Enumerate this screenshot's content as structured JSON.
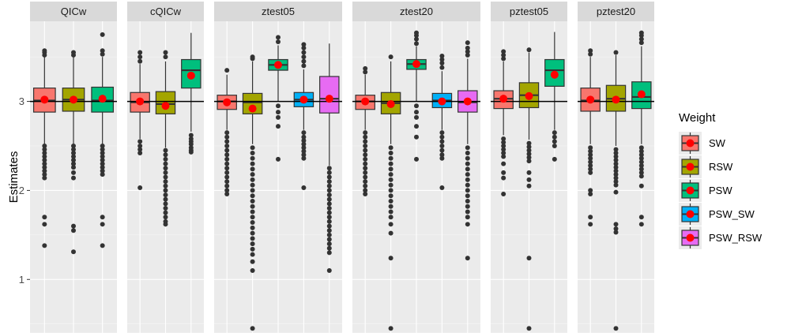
{
  "chart_data": {
    "type": "boxplot",
    "ylabel": "Estimates",
    "xlabel": "",
    "ylim": [
      0.4,
      3.9
    ],
    "yticks": [
      1,
      2,
      3
    ],
    "reference_line": 3,
    "legend": {
      "title": "Weight",
      "position": "right",
      "entries": [
        {
          "name": "SW",
          "color": "#F8766D"
        },
        {
          "name": "RSW",
          "color": "#A3A500"
        },
        {
          "name": "PSW",
          "color": "#00BF7D"
        },
        {
          "name": "PSW_SW",
          "color": "#00B0F6"
        },
        {
          "name": "PSW_RSW",
          "color": "#E76BF3"
        }
      ]
    },
    "panels": [
      {
        "name": "QICw",
        "boxes": [
          {
            "weight": "SW",
            "q1": 2.88,
            "median": 3.01,
            "q3": 3.15,
            "mean": 3.02,
            "whisker_low": 2.52,
            "whisker_high": 3.5,
            "outliers": [
              3.52,
              3.55,
              3.57,
              2.5,
              2.46,
              2.42,
              2.38,
              2.34,
              2.3,
              2.26,
              2.22,
              2.18,
              2.14,
              1.7,
              1.62,
              1.38
            ]
          },
          {
            "weight": "RSW",
            "q1": 2.89,
            "median": 3.02,
            "q3": 3.15,
            "mean": 3.02,
            "whisker_low": 2.52,
            "whisker_high": 3.5,
            "outliers": [
              3.52,
              3.55,
              2.5,
              2.46,
              2.42,
              2.38,
              2.34,
              2.3,
              2.26,
              2.2,
              2.14,
              1.6,
              1.55,
              1.31
            ]
          },
          {
            "weight": "PSW",
            "q1": 2.88,
            "median": 3.01,
            "q3": 3.16,
            "mean": 3.03,
            "whisker_low": 2.52,
            "whisker_high": 3.5,
            "outliers": [
              3.53,
              3.57,
              3.75,
              2.5,
              2.46,
              2.42,
              2.38,
              2.34,
              2.3,
              2.26,
              2.22,
              2.18,
              1.7,
              1.62,
              1.38
            ]
          }
        ]
      },
      {
        "name": "cQICw",
        "boxes": [
          {
            "weight": "SW",
            "q1": 2.88,
            "median": 2.99,
            "q3": 3.1,
            "mean": 3.0,
            "whisker_low": 2.58,
            "whisker_high": 3.42,
            "outliers": [
              3.45,
              3.5,
              3.55,
              2.55,
              2.5,
              2.46,
              2.42,
              2.03
            ]
          },
          {
            "weight": "RSW",
            "q1": 2.86,
            "median": 2.97,
            "q3": 3.11,
            "mean": 2.95,
            "whisker_low": 2.48,
            "whisker_high": 3.45,
            "outliers": [
              3.5,
              3.55,
              2.45,
              2.4,
              2.35,
              2.3,
              2.25,
              2.2,
              2.15,
              2.1,
              2.05,
              2.0,
              1.95,
              1.9,
              1.85,
              1.8,
              1.75,
              1.7,
              1.65,
              1.62
            ]
          },
          {
            "weight": "PSW",
            "q1": 3.15,
            "median": 3.35,
            "q3": 3.47,
            "mean": 3.29,
            "whisker_low": 2.66,
            "whisker_high": 3.77,
            "outliers": [
              2.62,
              2.58,
              2.55,
              2.52,
              2.48,
              2.45,
              2.43
            ]
          }
        ]
      },
      {
        "name": "ztest05",
        "boxes": [
          {
            "weight": "SW",
            "q1": 2.91,
            "median": 3.0,
            "q3": 3.07,
            "mean": 2.99,
            "whisker_low": 2.68,
            "whisker_high": 3.3,
            "outliers": [
              3.35,
              2.65,
              2.6,
              2.55,
              2.5,
              2.45,
              2.4,
              2.35,
              2.3,
              2.25,
              2.2,
              2.15,
              2.1,
              2.05,
              2.0,
              1.96
            ]
          },
          {
            "weight": "RSW",
            "q1": 2.86,
            "median": 2.99,
            "q3": 3.09,
            "mean": 2.92,
            "whisker_low": 2.52,
            "whisker_high": 3.45,
            "outliers": [
              3.48,
              3.5,
              2.48,
              2.42,
              2.36,
              2.3,
              2.24,
              2.18,
              2.12,
              2.06,
              2.0,
              1.94,
              1.88,
              1.82,
              1.76,
              1.7,
              1.64,
              1.58,
              1.52,
              1.46,
              1.4,
              1.34,
              1.28,
              1.2,
              1.1,
              0.45
            ]
          },
          {
            "weight": "PSW",
            "q1": 3.35,
            "median": 3.41,
            "q3": 3.47,
            "mean": 3.41,
            "whisker_low": 3.0,
            "whisker_high": 3.63,
            "outliers": [
              3.67,
              3.72,
              2.95,
              2.88,
              2.82,
              2.72,
              2.35
            ]
          },
          {
            "weight": "PSW_SW",
            "q1": 2.94,
            "median": 3.02,
            "q3": 3.1,
            "mean": 3.02,
            "whisker_low": 2.68,
            "whisker_high": 3.36,
            "outliers": [
              3.4,
              3.45,
              3.5,
              3.55,
              3.6,
              3.64,
              2.65,
              2.6,
              2.56,
              2.52,
              2.48,
              2.44,
              2.4,
              2.36,
              2.03
            ]
          },
          {
            "weight": "PSW_RSW",
            "q1": 2.87,
            "median": 3.03,
            "q3": 3.28,
            "mean": 3.03,
            "whisker_low": 2.28,
            "whisker_high": 3.65,
            "outliers": [
              2.25,
              2.2,
              2.15,
              2.1,
              2.05,
              2.0,
              1.95,
              1.9,
              1.85,
              1.8,
              1.75,
              1.7,
              1.65,
              1.6,
              1.55,
              1.5,
              1.45,
              1.4,
              1.35,
              1.3,
              1.1
            ]
          }
        ]
      },
      {
        "name": "ztest20",
        "boxes": [
          {
            "weight": "SW",
            "q1": 2.91,
            "median": 3.0,
            "q3": 3.07,
            "mean": 3.0,
            "whisker_low": 2.68,
            "whisker_high": 3.3,
            "outliers": [
              3.33,
              3.37,
              2.65,
              2.6,
              2.55,
              2.5,
              2.45,
              2.4,
              2.35,
              2.3,
              2.25,
              2.2,
              2.15,
              2.1,
              2.05,
              2.0,
              1.96
            ]
          },
          {
            "weight": "RSW",
            "q1": 2.86,
            "median": 2.98,
            "q3": 3.1,
            "mean": 2.97,
            "whisker_low": 2.52,
            "whisker_high": 3.45,
            "outliers": [
              3.5,
              2.48,
              2.42,
              2.36,
              2.3,
              2.24,
              2.18,
              2.12,
              2.06,
              2.0,
              1.94,
              1.88,
              1.82,
              1.76,
              1.7,
              1.62,
              1.52,
              1.24,
              0.45
            ]
          },
          {
            "weight": "PSW",
            "q1": 3.36,
            "median": 3.42,
            "q3": 3.47,
            "mean": 3.42,
            "whisker_low": 3.0,
            "whisker_high": 3.62,
            "outliers": [
              3.65,
              3.7,
              3.74,
              3.77,
              2.95,
              2.88,
              2.82,
              2.72,
              2.6,
              2.35
            ]
          },
          {
            "weight": "PSW_SW",
            "q1": 2.93,
            "median": 3.01,
            "q3": 3.09,
            "mean": 3.0,
            "whisker_low": 2.68,
            "whisker_high": 3.34,
            "outliers": [
              3.38,
              3.43,
              3.47,
              3.51,
              2.65,
              2.6,
              2.55,
              2.5,
              2.45,
              2.4,
              2.36,
              2.03
            ]
          },
          {
            "weight": "PSW_RSW",
            "q1": 2.88,
            "median": 2.99,
            "q3": 3.12,
            "mean": 3.0,
            "whisker_low": 2.52,
            "whisker_high": 3.48,
            "outliers": [
              3.52,
              3.56,
              3.6,
              3.66,
              2.48,
              2.42,
              2.36,
              2.3,
              2.24,
              2.18,
              2.12,
              2.06,
              2.0,
              1.94,
              1.88,
              1.82,
              1.76,
              1.7,
              1.62,
              1.24
            ]
          }
        ]
      },
      {
        "name": "pztest05",
        "boxes": [
          {
            "weight": "SW",
            "q1": 2.92,
            "median": 3.03,
            "q3": 3.12,
            "mean": 3.03,
            "whisker_low": 2.62,
            "whisker_high": 3.45,
            "outliers": [
              3.48,
              3.52,
              3.56,
              2.58,
              2.54,
              2.5,
              2.46,
              2.42,
              2.38,
              2.3,
              2.2,
              2.14,
              1.96
            ]
          },
          {
            "weight": "RSW",
            "q1": 2.93,
            "median": 3.07,
            "q3": 3.21,
            "mean": 3.06,
            "whisker_low": 2.57,
            "whisker_high": 3.55,
            "outliers": [
              3.58,
              2.53,
              2.49,
              2.45,
              2.41,
              2.37,
              2.33,
              2.2,
              2.12,
              2.05,
              1.24,
              0.45
            ]
          },
          {
            "weight": "PSW",
            "q1": 3.17,
            "median": 3.35,
            "q3": 3.47,
            "mean": 3.3,
            "whisker_low": 2.68,
            "whisker_high": 3.78,
            "outliers": [
              2.65,
              2.6,
              2.55,
              2.5,
              2.35
            ]
          }
        ]
      },
      {
        "name": "pztest20",
        "boxes": [
          {
            "weight": "SW",
            "q1": 2.89,
            "median": 3.01,
            "q3": 3.15,
            "mean": 3.02,
            "whisker_low": 2.52,
            "whisker_high": 3.5,
            "outliers": [
              3.53,
              3.57,
              2.48,
              2.44,
              2.4,
              2.36,
              2.32,
              2.28,
              2.24,
              2.2,
              2.0,
              1.96,
              1.7,
              1.62
            ]
          },
          {
            "weight": "RSW",
            "q1": 2.89,
            "median": 3.03,
            "q3": 3.18,
            "mean": 3.02,
            "whisker_low": 2.5,
            "whisker_high": 3.52,
            "outliers": [
              3.55,
              2.46,
              2.42,
              2.38,
              2.34,
              2.3,
              2.26,
              2.22,
              2.18,
              2.14,
              2.1,
              2.06,
              1.98,
              1.62,
              1.57,
              1.53,
              0.45
            ]
          },
          {
            "weight": "PSW",
            "q1": 2.92,
            "median": 3.05,
            "q3": 3.22,
            "mean": 3.08,
            "whisker_low": 2.52,
            "whisker_high": 3.62,
            "outliers": [
              3.66,
              3.7,
              3.74,
              3.77,
              2.48,
              2.44,
              2.4,
              2.36,
              2.32,
              2.28,
              2.24,
              2.2,
              2.16,
              2.05,
              1.7,
              1.62
            ]
          }
        ]
      }
    ]
  }
}
